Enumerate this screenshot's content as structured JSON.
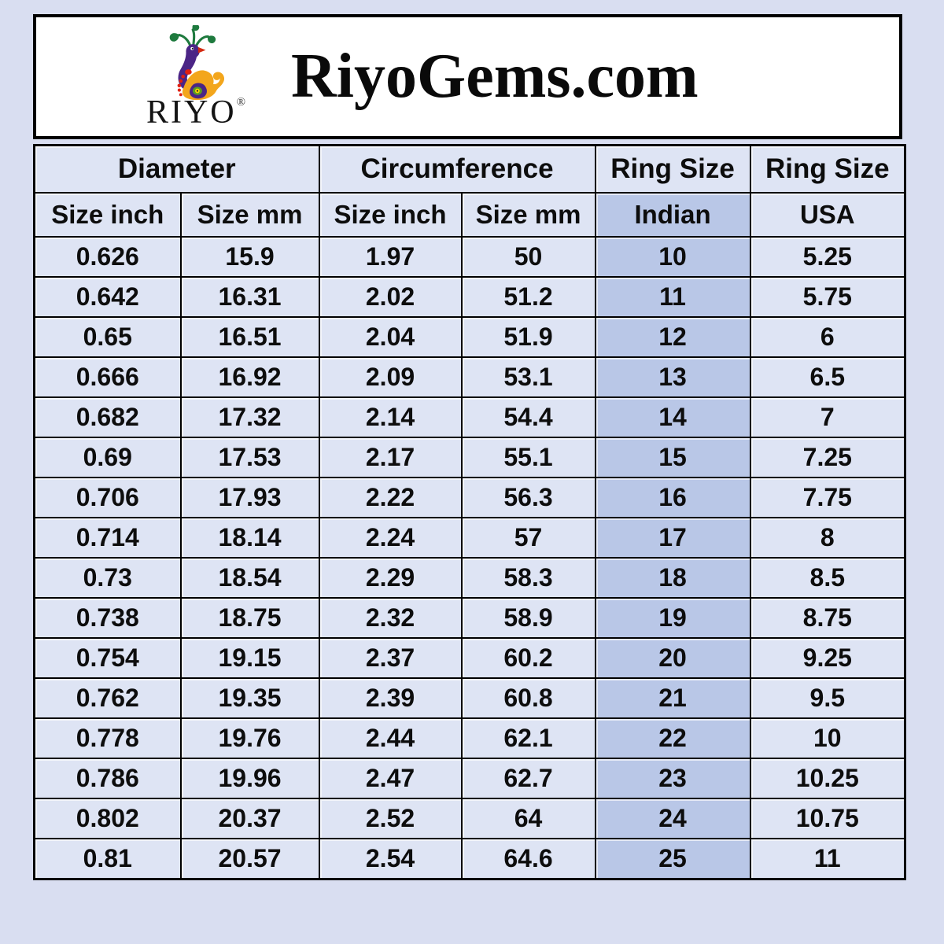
{
  "header": {
    "brand": "RiyoGems.com",
    "logo_text": "RIYO",
    "registered_mark": "®",
    "logo_icon": "peacock",
    "logo_colors": {
      "crest_green": "#1e7a3e",
      "body_orange": "#f3a61c",
      "neck_purple": "#4b2586",
      "beak_red": "#d42a12",
      "dots_red": "#e02012",
      "eye_yellow": "#ffd400"
    }
  },
  "table": {
    "groups": [
      {
        "label": "Diameter",
        "span": 2
      },
      {
        "label": "Circumference",
        "span": 2
      },
      {
        "label": "Ring Size",
        "span": 1
      },
      {
        "label": "Ring Size",
        "span": 1
      }
    ],
    "columns": [
      "Size inch",
      "Size mm",
      "Size inch",
      "Size mm",
      "Indian",
      "USA"
    ],
    "highlight_column_index": 4,
    "rows": [
      [
        "0.626",
        "15.9",
        "1.97",
        "50",
        "10",
        "5.25"
      ],
      [
        "0.642",
        "16.31",
        "2.02",
        "51.2",
        "11",
        "5.75"
      ],
      [
        "0.65",
        "16.51",
        "2.04",
        "51.9",
        "12",
        "6"
      ],
      [
        "0.666",
        "16.92",
        "2.09",
        "53.1",
        "13",
        "6.5"
      ],
      [
        "0.682",
        "17.32",
        "2.14",
        "54.4",
        "14",
        "7"
      ],
      [
        "0.69",
        "17.53",
        "2.17",
        "55.1",
        "15",
        "7.25"
      ],
      [
        "0.706",
        "17.93",
        "2.22",
        "56.3",
        "16",
        "7.75"
      ],
      [
        "0.714",
        "18.14",
        "2.24",
        "57",
        "17",
        "8"
      ],
      [
        "0.73",
        "18.54",
        "2.29",
        "58.3",
        "18",
        "8.5"
      ],
      [
        "0.738",
        "18.75",
        "2.32",
        "58.9",
        "19",
        "8.75"
      ],
      [
        "0.754",
        "19.15",
        "2.37",
        "60.2",
        "20",
        "9.25"
      ],
      [
        "0.762",
        "19.35",
        "2.39",
        "60.8",
        "21",
        "9.5"
      ],
      [
        "0.778",
        "19.76",
        "2.44",
        "62.1",
        "22",
        "10"
      ],
      [
        "0.786",
        "19.96",
        "2.47",
        "62.7",
        "23",
        "10.25"
      ],
      [
        "0.802",
        "20.37",
        "2.52",
        "64",
        "24",
        "10.75"
      ],
      [
        "0.81",
        "20.57",
        "2.54",
        "64.6",
        "25",
        "11"
      ]
    ],
    "colors": {
      "page_background": "#d9def1",
      "cell_background": "#dee4f4",
      "highlight_background": "#b9c7e7",
      "border": "#000000"
    }
  },
  "chart_data": {
    "type": "table",
    "title": "RiyoGems.com ring size conversion chart",
    "columns": [
      "Diameter Size inch",
      "Diameter Size mm",
      "Circumference Size inch",
      "Circumference Size mm",
      "Ring Size Indian",
      "Ring Size USA"
    ],
    "rows": [
      [
        "0.626",
        "15.9",
        "1.97",
        "50",
        "10",
        "5.25"
      ],
      [
        "0.642",
        "16.31",
        "2.02",
        "51.2",
        "11",
        "5.75"
      ],
      [
        "0.65",
        "16.51",
        "2.04",
        "51.9",
        "12",
        "6"
      ],
      [
        "0.666",
        "16.92",
        "2.09",
        "53.1",
        "13",
        "6.5"
      ],
      [
        "0.682",
        "17.32",
        "2.14",
        "54.4",
        "14",
        "7"
      ],
      [
        "0.69",
        "17.53",
        "2.17",
        "55.1",
        "15",
        "7.25"
      ],
      [
        "0.706",
        "17.93",
        "2.22",
        "56.3",
        "16",
        "7.75"
      ],
      [
        "0.714",
        "18.14",
        "2.24",
        "57",
        "17",
        "8"
      ],
      [
        "0.73",
        "18.54",
        "2.29",
        "58.3",
        "18",
        "8.5"
      ],
      [
        "0.738",
        "18.75",
        "2.32",
        "58.9",
        "19",
        "8.75"
      ],
      [
        "0.754",
        "19.15",
        "2.37",
        "60.2",
        "20",
        "9.25"
      ],
      [
        "0.762",
        "19.35",
        "2.39",
        "60.8",
        "21",
        "9.5"
      ],
      [
        "0.778",
        "19.76",
        "2.44",
        "62.1",
        "22",
        "10"
      ],
      [
        "0.786",
        "19.96",
        "2.47",
        "62.7",
        "23",
        "10.25"
      ],
      [
        "0.802",
        "20.37",
        "2.52",
        "64",
        "24",
        "10.75"
      ],
      [
        "0.81",
        "20.57",
        "2.54",
        "64.6",
        "25",
        "11"
      ]
    ]
  }
}
